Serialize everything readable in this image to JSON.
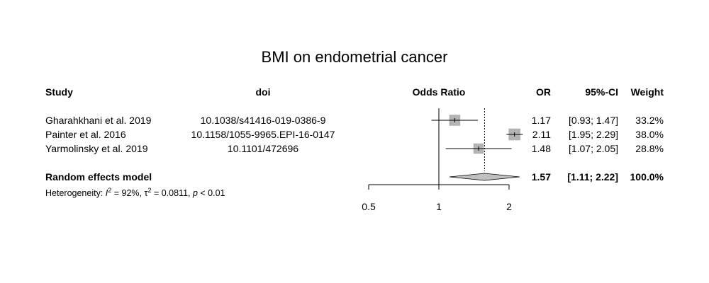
{
  "chart_data": {
    "type": "forest",
    "title": "BMI on endometrial cancer",
    "columns": {
      "study": "Study",
      "doi": "doi",
      "plot": "Odds Ratio",
      "or": "OR",
      "ci": "95%-CI",
      "weight": "Weight"
    },
    "studies": [
      {
        "study": "Gharahkhani et al. 2019",
        "doi": "10.1038/s41416-019-0386-9",
        "or": 1.17,
        "lower": 0.93,
        "upper": 1.47,
        "or_text": "1.17",
        "ci_text": "[0.93; 1.47]",
        "weight": 33.2,
        "weight_text": "33.2%"
      },
      {
        "study": "Painter et al. 2016",
        "doi": "10.1158/1055-9965.EPI-16-0147",
        "or": 2.11,
        "lower": 1.95,
        "upper": 2.29,
        "or_text": "2.11",
        "ci_text": "[1.95; 2.29]",
        "weight": 38.0,
        "weight_text": "38.0%"
      },
      {
        "study": "Yarmolinsky et al. 2019",
        "doi": "10.1101/472696",
        "or": 1.48,
        "lower": 1.07,
        "upper": 2.05,
        "or_text": "1.48",
        "ci_text": "[1.07; 2.05]",
        "weight": 28.8,
        "weight_text": "28.8%"
      }
    ],
    "pooled": {
      "label": "Random effects model",
      "or": 1.57,
      "lower": 1.11,
      "upper": 2.22,
      "or_text": "1.57",
      "ci_text": "[1.11; 2.22]",
      "weight_text": "100.0%"
    },
    "heterogeneity": {
      "prefix": "Heterogeneity: ",
      "i2_symbol": "I",
      "i2_sup": "2",
      "i2_value": " = 92%, ",
      "tau2_symbol": "τ",
      "tau2_sup": "2",
      "tau2_value": " = 0.0811, ",
      "p_symbol": "p",
      "p_value": " < 0.01"
    },
    "x_axis": {
      "scale": "log",
      "range": [
        0.5,
        2
      ],
      "ticks": [
        0.5,
        1,
        2
      ],
      "tick_labels": [
        "0.5",
        "1",
        "2"
      ],
      "reference_line": 1
    },
    "colors": {
      "box": "#b3b3b3",
      "diamond": "#c0c0c0",
      "line": "#000000",
      "box_border": "#a8a8a8"
    }
  }
}
